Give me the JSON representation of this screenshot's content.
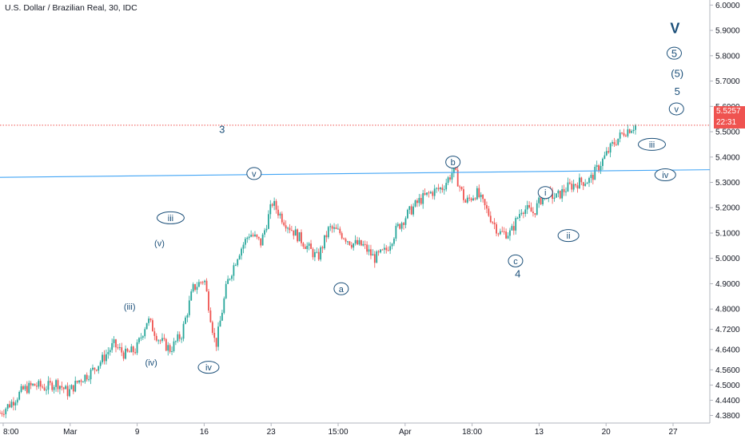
{
  "title": "U.S. Dollar / Brazilian Real, 30, IDC",
  "chart_data": {
    "type": "candlestick",
    "ylim": [
      4.35,
      6.02
    ],
    "y_ticks": [
      "6.0000",
      "5.9000",
      "5.8000",
      "5.7000",
      "5.6000",
      "5.5000",
      "5.4000",
      "5.3000",
      "5.2000",
      "5.1000",
      "5.0000",
      "4.9000",
      "4.8000",
      "4.7200",
      "4.6400",
      "4.5600",
      "4.5000",
      "4.4400",
      "4.3800"
    ],
    "x_ticks": [
      "8:00",
      "Mar",
      "9",
      "16",
      "23",
      "15:00",
      "Apr",
      "18:00",
      "13",
      "20",
      "27"
    ],
    "last_price": "5.5257",
    "countdown": "22:31",
    "price_path": [
      4.39,
      4.43,
      4.48,
      4.5,
      4.49,
      4.51,
      4.47,
      4.52,
      4.55,
      4.6,
      4.66,
      4.62,
      4.64,
      4.76,
      4.68,
      4.64,
      4.7,
      4.88,
      4.92,
      4.65,
      4.9,
      5.02,
      5.1,
      5.06,
      5.22,
      5.15,
      5.1,
      5.05,
      5.0,
      5.12,
      5.1,
      5.06,
      5.05,
      5.0,
      5.03,
      5.12,
      5.18,
      5.23,
      5.26,
      5.28,
      5.35,
      5.22,
      5.26,
      5.18,
      5.1,
      5.1,
      5.2,
      5.18,
      5.26,
      5.24,
      5.28,
      5.3,
      5.31,
      5.38,
      5.45,
      5.5,
      5.5257
    ],
    "trendline": {
      "start": 5.32,
      "end": 5.35
    },
    "waves": [
      {
        "label": "v",
        "circled": true,
        "x_frac": 0.341,
        "price": 5.335
      },
      {
        "label": "3",
        "circled": false,
        "x_frac": 0.298,
        "price": 5.51
      },
      {
        "label": "iii",
        "circled": true,
        "x_frac": 0.229,
        "price": 5.16
      },
      {
        "label": "(v)",
        "circled": false,
        "x_frac": 0.214,
        "price": 5.06
      },
      {
        "label": "(iii)",
        "circled": false,
        "x_frac": 0.174,
        "price": 4.81
      },
      {
        "label": "(iv)",
        "circled": false,
        "x_frac": 0.203,
        "price": 4.59
      },
      {
        "label": "iv",
        "circled": true,
        "x_frac": 0.28,
        "price": 4.57
      },
      {
        "label": "a",
        "circled": true,
        "x_frac": 0.458,
        "price": 4.88
      },
      {
        "label": "b",
        "circled": true,
        "x_frac": 0.608,
        "price": 5.38
      },
      {
        "label": "c",
        "circled": true,
        "x_frac": 0.692,
        "price": 4.99
      },
      {
        "label": "4",
        "circled": false,
        "x_frac": 0.695,
        "price": 4.94
      },
      {
        "label": "i",
        "circled": true,
        "x_frac": 0.732,
        "price": 5.26
      },
      {
        "label": "ii",
        "circled": true,
        "x_frac": 0.763,
        "price": 5.09
      },
      {
        "label": "iii",
        "circled": true,
        "x_frac": 0.875,
        "price": 5.45
      },
      {
        "label": "iv",
        "circled": true,
        "x_frac": 0.893,
        "price": 5.33
      },
      {
        "label": "v",
        "circled": true,
        "x_frac": 0.908,
        "price": 5.59
      },
      {
        "label": "5",
        "circled": false,
        "x_frac": 0.909,
        "price": 5.66
      },
      {
        "label": "(5)",
        "circled": false,
        "x_frac": 0.909,
        "price": 5.73
      },
      {
        "label": "5",
        "circled": true,
        "x_frac": 0.905,
        "price": 5.81
      },
      {
        "label": "V",
        "circled": false,
        "x_frac": 0.906,
        "price": 5.91
      }
    ],
    "colors": {
      "up": "#26a69a",
      "down": "#ef5350",
      "trend": "#42a5f5",
      "wave": "#1b4f79",
      "price_line": "#ef5350"
    }
  }
}
